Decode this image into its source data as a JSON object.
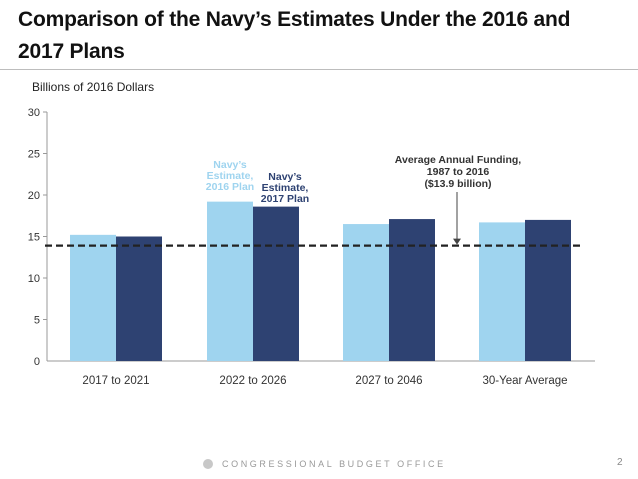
{
  "slide": {
    "title": "Comparison of the Navy’s Estimates Under the 2016 and 2017 Plans",
    "units_label": "Billions of 2016 Dollars",
    "footer": "CONGRESSIONAL BUDGET OFFICE",
    "page_number": "2"
  },
  "chart_data": {
    "type": "bar",
    "title": "Comparison of the Navy’s Estimates Under the 2016 and 2017 Plans",
    "xlabel": "",
    "ylabel": "Billions of 2016 Dollars",
    "ylim": [
      0,
      30
    ],
    "yticks": [
      "0",
      "5",
      "10",
      "15",
      "20",
      "25",
      "30"
    ],
    "categories": [
      "2017 to 2021",
      "2022 to 2026",
      "2027 to 2046",
      "30-Year Average"
    ],
    "series": [
      {
        "name": "Navy’s Estimate, 2016 Plan",
        "label_lines": [
          "Navy’s",
          "Estimate,",
          "2016 Plan"
        ],
        "color": "#9fd4ef",
        "values": [
          15.2,
          19.2,
          16.5,
          16.7
        ]
      },
      {
        "name": "Navy’s Estimate, 2017 Plan",
        "label_lines": [
          "Navy’s",
          "Estimate,",
          "2017 Plan"
        ],
        "color": "#2e4272",
        "values": [
          15.0,
          18.6,
          17.1,
          17.0
        ]
      }
    ],
    "reference_line": {
      "value": 13.9,
      "label_lines": [
        "Average Annual Funding,",
        "1987 to 2016",
        "($13.9 billion)"
      ],
      "style": "dashed",
      "color": "#222222"
    },
    "grid": false,
    "legend": "inline-annotations"
  }
}
